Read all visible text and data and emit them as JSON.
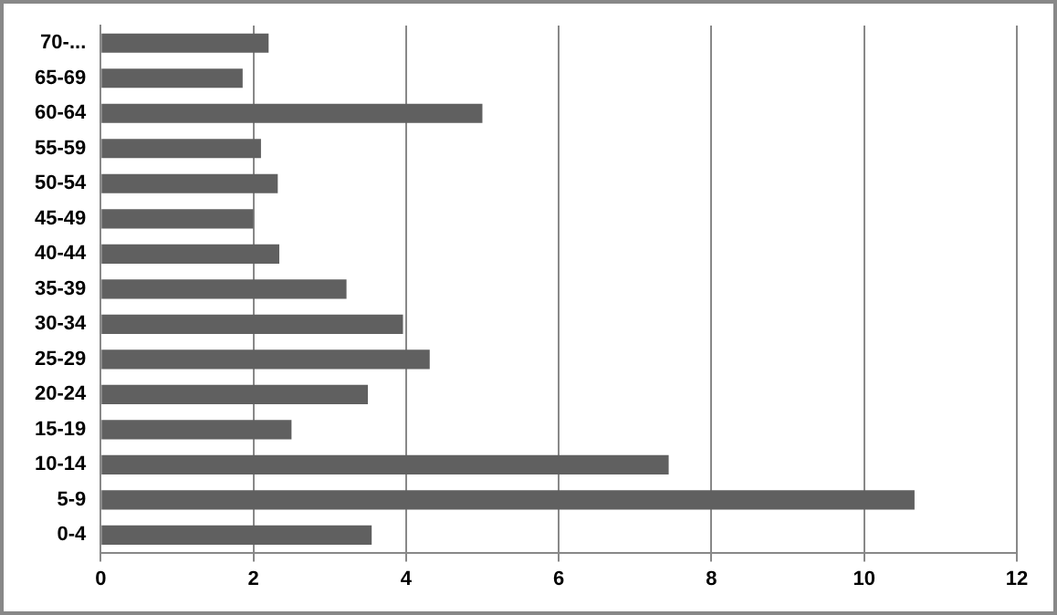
{
  "chart_data": {
    "type": "bar",
    "orientation": "horizontal",
    "categories": [
      "70-...",
      "65-69",
      "60-64",
      "55-59",
      "50-54",
      "45-49",
      "40-44",
      "35-39",
      "30-34",
      "25-29",
      "20-24",
      "15-19",
      "10-14",
      "5-9",
      "0-4"
    ],
    "values": [
      2.2,
      1.86,
      5.0,
      2.1,
      2.32,
      2.0,
      2.34,
      3.22,
      3.96,
      4.31,
      3.5,
      2.5,
      7.44,
      10.66,
      3.55
    ],
    "color": "#606060",
    "xlim": [
      0,
      12
    ],
    "xticks": [
      0,
      2,
      4,
      6,
      8,
      10,
      12
    ],
    "grid": "x",
    "legend": false
  }
}
